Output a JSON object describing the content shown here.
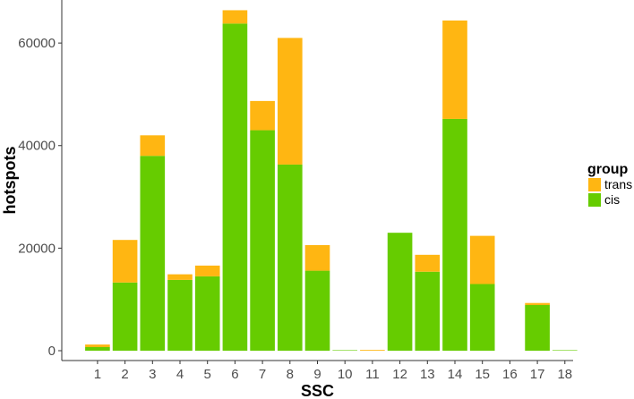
{
  "chart_data": {
    "type": "bar",
    "stacked": true,
    "xlabel": "SSC",
    "ylabel": "hotspots",
    "categories": [
      "1",
      "2",
      "3",
      "4",
      "5",
      "6",
      "7",
      "8",
      "9",
      "10",
      "11",
      "12",
      "13",
      "14",
      "15",
      "16",
      "17",
      "18"
    ],
    "series": [
      {
        "name": "cis",
        "color": "#66CC00",
        "values": [
          700,
          13300,
          38000,
          13800,
          14500,
          63800,
          43000,
          36300,
          15600,
          100,
          0,
          23000,
          15400,
          45200,
          13000,
          0,
          8900,
          100
        ]
      },
      {
        "name": "trans",
        "color": "#FFB612",
        "values": [
          500,
          8300,
          4000,
          1100,
          2100,
          2600,
          5700,
          24700,
          5000,
          0,
          150,
          0,
          3300,
          19200,
          9400,
          0,
          400,
          0
        ]
      }
    ],
    "ylim": [
      0,
      67000
    ],
    "yticks": [
      0,
      20000,
      40000,
      60000
    ],
    "yticklabels": [
      "0",
      "20000",
      "40000",
      "60000"
    ],
    "grid": false,
    "legend": {
      "title": "group",
      "position": "right",
      "entries": [
        "trans",
        "cis"
      ]
    }
  }
}
